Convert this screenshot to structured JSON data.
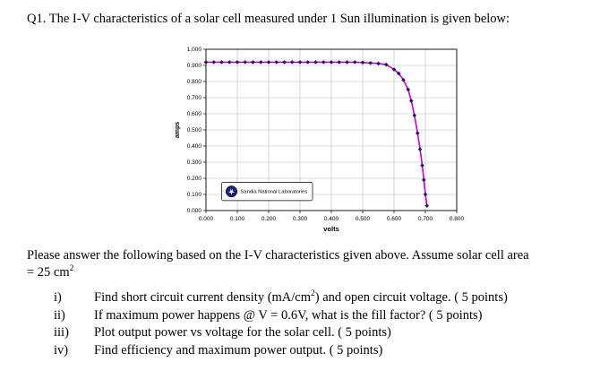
{
  "document": {
    "title": "Q1. The I-V characteristics of a solar cell measured under 1 Sun illumination is given below:",
    "prompt_line1": "Please answer the following based on the I-V characteristics given above. Assume solar cell area",
    "prompt_line2": "= 25 cm",
    "prompt_sup": "2",
    "questions": [
      {
        "label": "i)",
        "pre": "Find short circuit current density (mA/cm",
        "sup": "2",
        "post": ") and open circuit voltage. ( 5 points)"
      },
      {
        "label": "ii)",
        "pre": "If maximum power happens @ V = 0.6V, what is the fill factor? ( 5 points)",
        "sup": "",
        "post": ""
      },
      {
        "label": "iii)",
        "pre": "Plot output power vs voltage for the solar cell. ( 5 points)",
        "sup": "",
        "post": ""
      },
      {
        "label": "iv)",
        "pre": "Find efficiency and maximum power output. ( 5 points)",
        "sup": "",
        "post": ""
      }
    ]
  },
  "chart_data": {
    "type": "line",
    "title": "",
    "xlabel": "volts",
    "ylabel": "amps",
    "xlim": [
      0,
      0.8
    ],
    "ylim": [
      0,
      1.0
    ],
    "grid": true,
    "x_ticks": [
      "0.000",
      "0.100",
      "0.200",
      "0.300",
      "0.400",
      "0.500",
      "0.600",
      "0.700",
      "0.800"
    ],
    "y_ticks": [
      "0.000",
      "0.100",
      "0.200",
      "0.300",
      "0.400",
      "0.500",
      "0.600",
      "0.700",
      "0.800",
      "0.900",
      "1.000"
    ],
    "legend": {
      "label": "Sandia National Laboratories",
      "position": "lower-left"
    },
    "colors": {
      "line": "#cc00cc",
      "marker": "#1a1a66",
      "grid": "#b8b8b8",
      "logo": "#1a2370"
    },
    "series": [
      {
        "name": "Sandia National Laboratories",
        "line_color": "#cc00cc",
        "marker_color": "#1a1a66",
        "x": [
          0.0,
          0.025,
          0.05,
          0.075,
          0.1,
          0.125,
          0.15,
          0.175,
          0.2,
          0.225,
          0.25,
          0.275,
          0.3,
          0.325,
          0.35,
          0.375,
          0.4,
          0.425,
          0.45,
          0.475,
          0.5,
          0.525,
          0.55,
          0.575,
          0.6,
          0.615,
          0.63,
          0.645,
          0.655,
          0.665,
          0.675,
          0.683,
          0.69,
          0.695,
          0.7,
          0.705
        ],
        "y": [
          0.92,
          0.92,
          0.92,
          0.92,
          0.92,
          0.92,
          0.92,
          0.92,
          0.92,
          0.92,
          0.92,
          0.92,
          0.92,
          0.92,
          0.92,
          0.92,
          0.92,
          0.92,
          0.92,
          0.92,
          0.918,
          0.915,
          0.912,
          0.905,
          0.875,
          0.85,
          0.81,
          0.75,
          0.68,
          0.59,
          0.48,
          0.38,
          0.28,
          0.19,
          0.1,
          0.03
        ]
      }
    ]
  }
}
